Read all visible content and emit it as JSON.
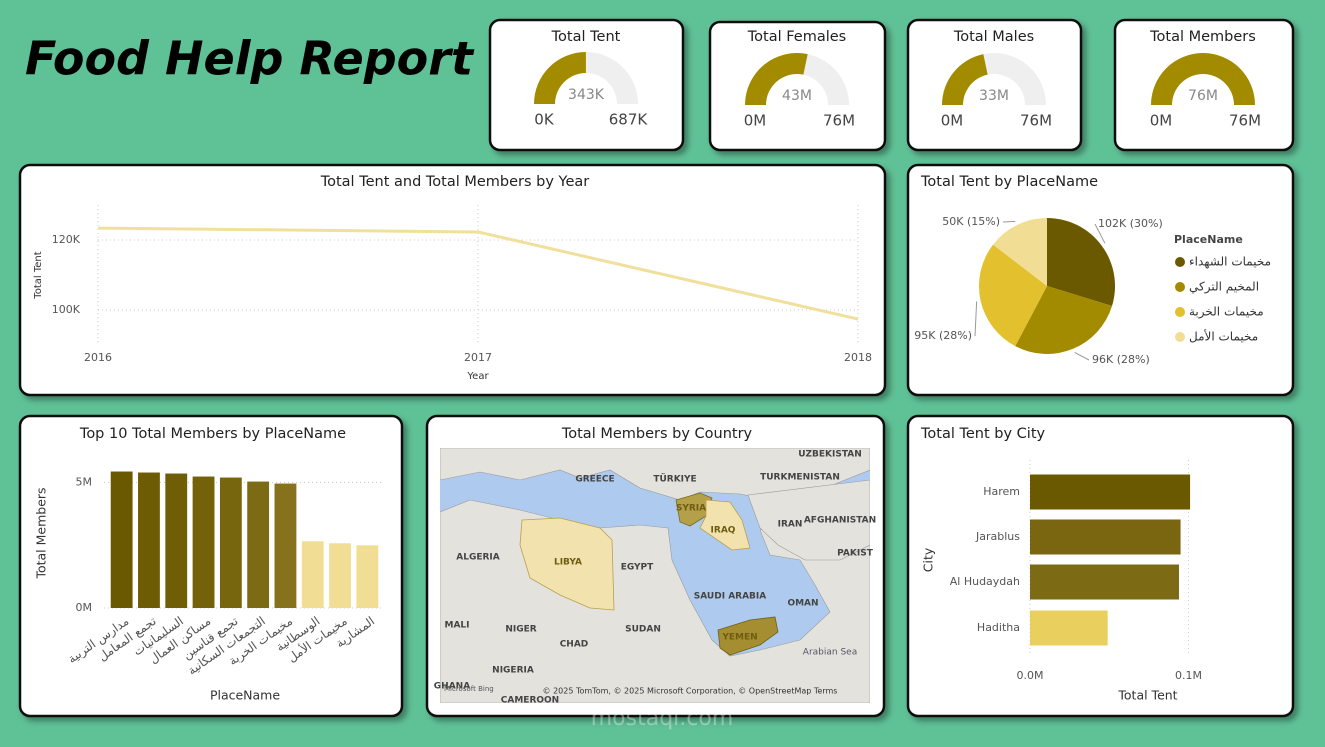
{
  "title": "Food Help Report",
  "watermark": "mostaql.com",
  "chart_data": [
    {
      "type": "gauge",
      "title": "Total Tent",
      "values": [
        343000
      ],
      "value_labels": [
        "343K"
      ],
      "ylim": [
        0,
        687000
      ],
      "yticks": [
        {
          "value": 0,
          "label": "0K"
        },
        {
          "value": 687000,
          "label": "687K"
        }
      ],
      "color": "#a38b00",
      "track_color": "#efefef"
    },
    {
      "type": "gauge",
      "title": "Total Females",
      "values": [
        43000000
      ],
      "value_labels": [
        "43M"
      ],
      "ylim": [
        0,
        76000000
      ],
      "yticks": [
        {
          "value": 0,
          "label": "0M"
        },
        {
          "value": 76000000,
          "label": "76M"
        }
      ],
      "color": "#a38b00",
      "track_color": "#efefef"
    },
    {
      "type": "gauge",
      "title": "Total Males",
      "values": [
        33000000
      ],
      "value_labels": [
        "33M"
      ],
      "ylim": [
        0,
        76000000
      ],
      "yticks": [
        {
          "value": 0,
          "label": "0M"
        },
        {
          "value": 76000000,
          "label": "76M"
        }
      ],
      "color": "#a38b00",
      "track_color": "#efefef"
    },
    {
      "type": "gauge",
      "title": "Total Members",
      "values": [
        76000000
      ],
      "value_labels": [
        "76M"
      ],
      "ylim": [
        0,
        76000000
      ],
      "yticks": [
        {
          "value": 0,
          "label": "0M"
        },
        {
          "value": 76000000,
          "label": "76M"
        }
      ],
      "color": "#a38b00",
      "track_color": "#efefef"
    },
    {
      "type": "line",
      "title": "Total Tent and Total Members by Year",
      "x_label": "Year",
      "y_label": "Total Tent",
      "x": [
        2016,
        2017,
        2018
      ],
      "values": [
        123400,
        122300,
        97400
      ],
      "color": "#f0e09c",
      "xlim": [
        2016,
        2018
      ],
      "xticks": [
        2016,
        2017,
        2018
      ],
      "ylim": [
        90000,
        130000
      ],
      "yticks": [
        {
          "value": 100000,
          "label": "100K"
        },
        {
          "value": 120000,
          "label": "120K"
        }
      ],
      "grid": true
    },
    {
      "type": "pie",
      "title": "Total Tent by PlaceName",
      "legend_title": "PlaceName",
      "categories": [
        "مخيمات الشهداء",
        "المخيم التركي",
        "مخيمات الخربة",
        "مخيمات الأمل"
      ],
      "values": [
        102000,
        96000,
        95000,
        50000
      ],
      "value_labels": [
        "102K (30%)",
        "96K (28%)",
        "95K (28%)",
        "50K (15%)"
      ],
      "colors": [
        "#6b5900",
        "#a38b00",
        "#e2c02e",
        "#f2dd94"
      ],
      "legend": "right"
    },
    {
      "type": "bar",
      "title": "Top 10 Total Members by PlaceName",
      "x_label": "PlaceName",
      "y_label": "Total Members",
      "categories": [
        "مدارس التربية",
        "تجمع المعامل",
        "السليمانيات",
        "مساكن العمال",
        "تجمع قناسين",
        "التجمعات السكانية",
        "مخيمات الخربة",
        "الوسطانية",
        "مخيمات الأمل",
        "المشارية"
      ],
      "values": [
        5440000,
        5400000,
        5360000,
        5240000,
        5200000,
        5040000,
        4960000,
        2660000,
        2580000,
        2500000
      ],
      "colors": [
        "#6b5900",
        "#6e5c04",
        "#705e06",
        "#74620a",
        "#78660e",
        "#7c6a14",
        "#86721c",
        "#f2dd94",
        "#f2dd94",
        "#f2dd94"
      ],
      "ylim": [
        0,
        5700000
      ],
      "yticks": [
        {
          "value": 0,
          "label": "0M"
        },
        {
          "value": 5000000,
          "label": "5M"
        }
      ],
      "grid": true
    },
    {
      "type": "map",
      "title": "Total Members by Country",
      "highlighted_countries": [
        "SYRIA",
        "IRAQ",
        "LIBYA",
        "YEMEN"
      ],
      "labels": [
        "UZBEKISTAN",
        "GREECE",
        "TÜRKIYE",
        "TURKMENISTAN",
        "IRAN",
        "AFGHANISTAN",
        "PAKIST",
        "ALGERIA",
        "EGYPT",
        "SAUDI ARABIA",
        "OMAN",
        "MALI",
        "NIGER",
        "CHAD",
        "SUDAN",
        "Arabian Sea",
        "NIGERIA",
        "GHANA",
        "CAMEROON"
      ],
      "provider": "Microsoft Bing",
      "attribution": "© 2025 TomTom, © 2025 Microsoft Corporation, © OpenStreetMap  Terms"
    },
    {
      "type": "hbar",
      "title": "Total Tent by City",
      "x_label": "Total Tent",
      "y_label": "City",
      "categories": [
        "Harem",
        "Jarablus",
        "Al Hudaydah",
        "Haditha"
      ],
      "values": [
        101000,
        95000,
        94000,
        49000
      ],
      "colors": [
        "#6b5900",
        "#7a6610",
        "#7d6a15",
        "#e8cf5e"
      ],
      "xlim": [
        0,
        106000
      ],
      "xticks": [
        {
          "value": 0,
          "label": "0.0M"
        },
        {
          "value": 100000,
          "label": "0.1M"
        }
      ],
      "grid": true
    }
  ]
}
